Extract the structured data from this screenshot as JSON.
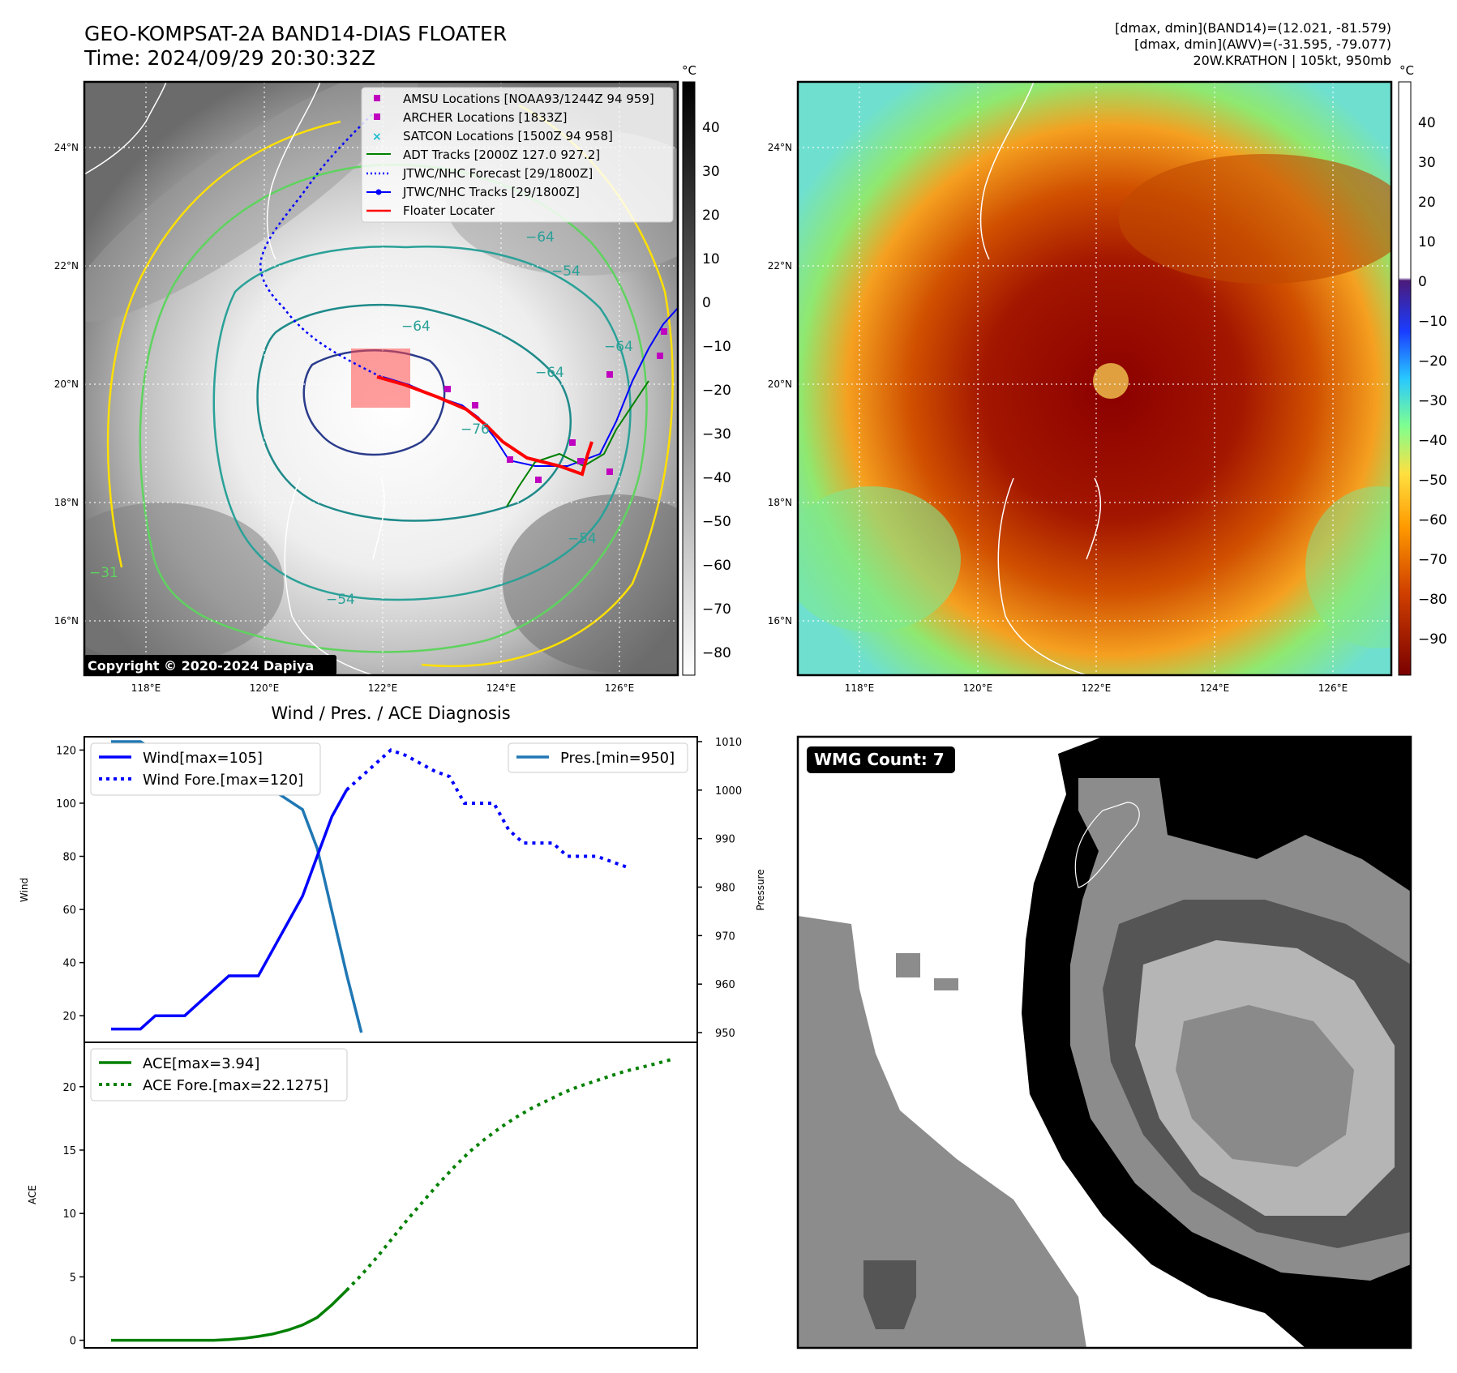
{
  "header": {
    "title_line1": "GEO-KOMPSAT-2A BAND14-DIAS FLOATER",
    "title_line2": "Time: 2024/09/29 20:30:32Z",
    "info_line1": "[dmax, dmin](BAND14)=(12.021, -81.579)",
    "info_line2": "[dmax, dmin](AWV)=(-31.595, -79.077)",
    "info_line3": "20W.KRATHON | 105kt, 950mb"
  },
  "map_axes": {
    "lon_labels": [
      "118°E",
      "120°E",
      "122°E",
      "124°E",
      "126°E"
    ],
    "lat_labels": [
      "24°N",
      "22°N",
      "20°N",
      "18°N",
      "16°N"
    ]
  },
  "ir_panel": {
    "colorbar_unit": "°C",
    "colorbar_ticks": [
      "40",
      "30",
      "20",
      "10",
      "0",
      "−10",
      "−20",
      "−30",
      "−40",
      "−50",
      "−60",
      "−70",
      "−80"
    ],
    "contour_labels": [
      "−64",
      "−54",
      "−64",
      "−64",
      "−64",
      "−54",
      "−76",
      "−54",
      "−31"
    ],
    "copyright": "Copyright © 2020-2024 Dapiya",
    "legend": [
      {
        "label": "AMSU Locations [NOAA93/1244Z 94 959]",
        "color": "#bf00bf",
        "marker": "square"
      },
      {
        "label": "ARCHER Locations [1833Z]",
        "color": "#bf00bf",
        "marker": "square"
      },
      {
        "label": "SATCON Locations [1500Z 94 958]",
        "color": "#17becf",
        "marker": "x"
      },
      {
        "label": "ADT Tracks [2000Z 127.0 927.2]",
        "color": "#008000",
        "marker": "line"
      },
      {
        "label": "JTWC/NHC Forecast [29/1800Z]",
        "color": "#0000ff",
        "marker": "dotted"
      },
      {
        "label": "JTWC/NHC Tracks [29/1800Z]",
        "color": "#0000ff",
        "marker": "line-dot"
      },
      {
        "label": "Floater Locater",
        "color": "#ff0000",
        "marker": "line"
      }
    ]
  },
  "awv_panel": {
    "colorbar_unit": "°C",
    "colorbar_ticks": [
      "40",
      "30",
      "20",
      "10",
      "0",
      "−10",
      "−20",
      "−30",
      "−40",
      "−50",
      "−60",
      "−70",
      "−80",
      "−90"
    ]
  },
  "diagnosis_panel": {
    "title": "Wind / Pres. / ACE Diagnosis",
    "wind_ylabel": "Wind",
    "pressure_ylabel": "Pressure",
    "ace_ylabel": "ACE",
    "wind_ticks": [
      "120",
      "100",
      "80",
      "60",
      "40",
      "20"
    ],
    "pressure_ticks": [
      "1010",
      "1000",
      "990",
      "980",
      "970",
      "960",
      "950"
    ],
    "ace_ticks": [
      "20",
      "15",
      "10",
      "5",
      "0"
    ],
    "legend_wind": "Wind[max=105]",
    "legend_wind_fore": "Wind Fore.[max=120]",
    "legend_pres": "Pres.[min=950]",
    "legend_ace": "ACE[max=3.94]",
    "legend_ace_fore": "ACE Fore.[max=22.1275]"
  },
  "wmg_panel": {
    "badge": "WMG Count: 7"
  },
  "colors": {
    "wind": "#0000ff",
    "pressure": "#1f77b4",
    "ace": "#008000",
    "floater": "#ff0000"
  },
  "chart_data": [
    {
      "type": "line",
      "name": "wind",
      "x": [
        0,
        1,
        2,
        3,
        4,
        5,
        6,
        7,
        8,
        9,
        10,
        11,
        12,
        13,
        14,
        15,
        16,
        17,
        18,
        19,
        20,
        21,
        22,
        23,
        24,
        25,
        26,
        27,
        28,
        29,
        30,
        31,
        32,
        33,
        34,
        35,
        36,
        37,
        38
      ],
      "series": [
        {
          "name": "Wind[max=105]",
          "values": [
            15,
            15,
            15,
            20,
            20,
            20,
            25,
            30,
            35,
            35,
            35,
            45,
            55,
            65,
            80,
            95,
            105,
            null,
            null,
            null,
            null,
            null,
            null,
            null,
            null,
            null,
            null,
            null,
            null,
            null,
            null,
            null,
            null,
            null,
            null,
            null,
            null,
            null,
            null
          ]
        },
        {
          "name": "Wind Fore.[max=120]",
          "values": [
            null,
            null,
            null,
            null,
            null,
            null,
            null,
            null,
            null,
            null,
            null,
            null,
            null,
            null,
            null,
            null,
            105,
            110,
            115,
            120,
            118,
            115,
            112,
            110,
            100,
            100,
            100,
            90,
            85,
            85,
            85,
            80,
            80,
            80,
            78,
            76,
            null,
            null,
            null
          ]
        }
      ],
      "ylim": [
        10,
        125
      ]
    },
    {
      "type": "line",
      "name": "pressure",
      "series": [
        {
          "name": "Pres.[min=950]",
          "values": [
            1010,
            1010,
            1010,
            1008,
            1007,
            1006,
            1005,
            1004,
            1003,
            1003,
            1001,
            1000,
            998,
            996,
            988,
            975,
            962,
            950
          ]
        }
      ],
      "ylim": [
        948,
        1011
      ]
    },
    {
      "type": "line",
      "name": "ace",
      "series": [
        {
          "name": "ACE[max=3.94]",
          "values": [
            0,
            0,
            0,
            0,
            0,
            0,
            0,
            0,
            0.05,
            0.15,
            0.3,
            0.5,
            0.8,
            1.2,
            1.8,
            2.8,
            3.94
          ]
        },
        {
          "name": "ACE Fore.[max=22.1275]",
          "values": [
            3.94,
            5.2,
            6.6,
            8.1,
            9.6,
            11.0,
            12.4,
            13.7,
            14.9,
            15.9,
            16.8,
            17.6,
            18.3,
            18.9,
            19.5,
            20.0,
            20.4,
            20.8,
            21.2,
            21.5,
            21.8,
            22.1275
          ]
        }
      ],
      "ylim": [
        -0.6,
        23.5
      ]
    }
  ]
}
